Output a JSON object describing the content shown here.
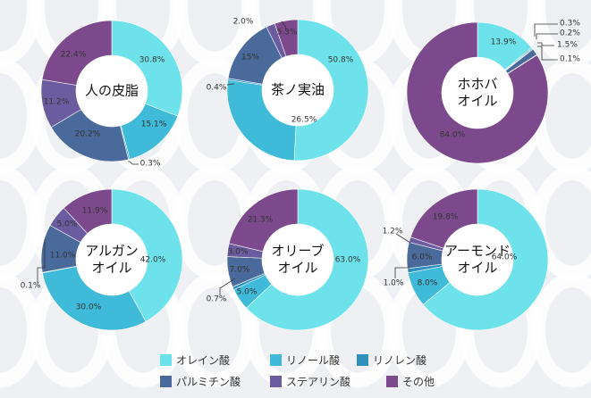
{
  "chart_data": [
    {
      "type": "pie",
      "title": "人の皮脂",
      "title_lines": [
        "人の皮脂"
      ],
      "categories": [
        "オレイン酸",
        "リノール酸",
        "リノレン酸",
        "パルミチン酸",
        "ステアリン酸",
        "その他"
      ],
      "values": [
        30.8,
        15.1,
        0.3,
        20.2,
        11.2,
        22.4
      ],
      "labels": [
        "30.8%",
        "15.1%",
        "0.3%",
        "20.2%",
        "11.2%",
        "22.4%"
      ]
    },
    {
      "type": "pie",
      "title": "茶ノ実油",
      "title_lines": [
        "茶ノ実油"
      ],
      "categories": [
        "オレイン酸",
        "リノール酸",
        "リノレン酸",
        "パルミチン酸",
        "ステアリン酸",
        "その他"
      ],
      "values": [
        50.8,
        26.5,
        0.4,
        15,
        2.0,
        5.3
      ],
      "labels": [
        "50.8%",
        "26.5%",
        "0.4%",
        "15%",
        "2.0%",
        "5.3%"
      ]
    },
    {
      "type": "pie",
      "title": "ホホバオイル",
      "title_lines": [
        "ホホバ",
        "オイル"
      ],
      "categories": [
        "オレイン酸",
        "リノール酸",
        "リノレン酸",
        "パルミチン酸",
        "ステアリン酸",
        "その他"
      ],
      "values": [
        13.9,
        0.3,
        0.2,
        1.5,
        0.1,
        84.0
      ],
      "labels": [
        "13.9%",
        "0.3%",
        "0.2%",
        "1.5%",
        "0.1%",
        "84.0%"
      ]
    },
    {
      "type": "pie",
      "title": "アルガンオイル",
      "title_lines": [
        "アルガン",
        "オイル"
      ],
      "categories": [
        "オレイン酸",
        "リノール酸",
        "リノレン酸",
        "パルミチン酸",
        "ステアリン酸",
        "その他"
      ],
      "values": [
        42.0,
        30.0,
        0.1,
        11.0,
        5.0,
        11.9
      ],
      "labels": [
        "42.0%",
        "30.0%",
        "0.1%",
        "11.0%",
        "5.0%",
        "11.9%"
      ]
    },
    {
      "type": "pie",
      "title": "オリーブオイル",
      "title_lines": [
        "オリーブ",
        "オイル"
      ],
      "categories": [
        "オレイン酸",
        "リノール酸",
        "リノレン酸",
        "パルミチン酸",
        "ステアリン酸",
        "その他"
      ],
      "values": [
        63.0,
        5.0,
        0.7,
        7.0,
        3.0,
        21.3
      ],
      "labels": [
        "63.0%",
        "5.0%",
        "0.7%",
        "7.0%",
        "3.0%",
        "21.3%"
      ]
    },
    {
      "type": "pie",
      "title": "アーモンドオイル",
      "title_lines": [
        "アーモンド",
        "オイル"
      ],
      "categories": [
        "オレイン酸",
        "リノール酸",
        "リノレン酸",
        "パルミチン酸",
        "ステアリン酸",
        "その他"
      ],
      "values": [
        64.0,
        8.0,
        1.0,
        6.0,
        1.2,
        19.8
      ],
      "labels": [
        "64.0%",
        "8.0%",
        "1.0%",
        "6.0%",
        "1.2%",
        "19.8%"
      ]
    }
  ],
  "legend": [
    {
      "label": "オレイン酸",
      "color": "#6ee2ea"
    },
    {
      "label": "リノール酸",
      "color": "#3fbad9"
    },
    {
      "label": "リノレン酸",
      "color": "#2f8fbd"
    },
    {
      "label": "パルミチン酸",
      "color": "#4a6a9c"
    },
    {
      "label": "ステアリン酸",
      "color": "#6a5c9e"
    },
    {
      "label": "その他",
      "color": "#7c4a8c"
    }
  ]
}
